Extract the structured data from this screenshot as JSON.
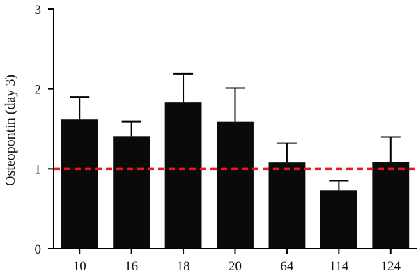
{
  "chart_data": {
    "type": "bar",
    "title": "",
    "xlabel": "",
    "ylabel": "Osteopontin (day 3)",
    "categories": [
      "10",
      "16",
      "18",
      "20",
      "64",
      "114",
      "124"
    ],
    "values": [
      1.62,
      1.41,
      1.83,
      1.59,
      1.08,
      0.73,
      1.09
    ],
    "error_upper": [
      0.28,
      0.18,
      0.36,
      0.42,
      0.24,
      0.12,
      0.31
    ],
    "ylim": [
      0,
      3
    ],
    "yticks": [
      "0",
      "1",
      "2",
      "3"
    ],
    "reference_line": {
      "value": 1,
      "style": "dashed"
    },
    "grid": false,
    "colors": {
      "bar": "#0a0a0a",
      "reference_line": "#e41a1c",
      "axis": "#000000"
    }
  }
}
